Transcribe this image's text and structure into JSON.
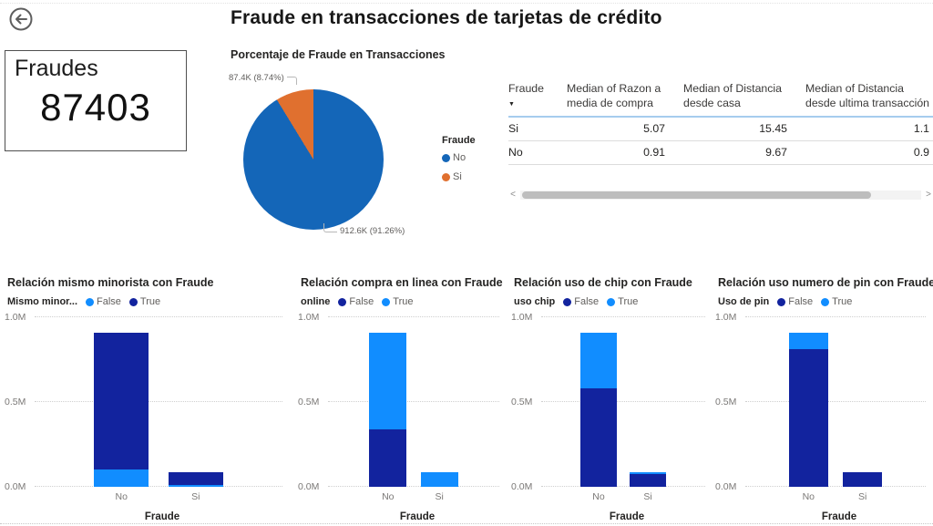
{
  "page": {
    "title": "Fraude en transacciones de tarjetas de crédito"
  },
  "kpi": {
    "label": "Fraudes",
    "value": "87403"
  },
  "table_ui": {
    "sort_indicator": "▼",
    "scroll_left": "<",
    "scroll_right": ">"
  },
  "chart_data": [
    {
      "type": "pie",
      "title": "Porcentaje de Fraude en Transacciones",
      "legend_title": "Fraude",
      "legend_position": "right",
      "labels": [
        "No",
        "Si"
      ],
      "values": [
        912600,
        87400
      ],
      "percents": [
        91.26,
        8.74
      ],
      "value_labels": [
        "912.6K (91.26%)",
        "87.4K (8.74%)"
      ],
      "colors": [
        "#1466B8",
        "#E0702F"
      ]
    },
    {
      "type": "table",
      "columns": [
        "Fraude",
        "Median of Razon a media de compra",
        "Median of Distancia desde casa",
        "Median of Distancia desde ultima transacción"
      ],
      "sort": {
        "column": "Fraude",
        "direction": "desc"
      },
      "rows": [
        [
          "Si",
          "5.07",
          "15.45",
          "1.1"
        ],
        [
          "No",
          "0.91",
          "9.67",
          "0.9"
        ]
      ]
    },
    {
      "type": "bar",
      "subtype": "stacked-column",
      "title": "Relación mismo minorista con Fraude",
      "legend_title": "Mismo minor...",
      "categories": [
        "No",
        "Si"
      ],
      "series": [
        {
          "name": "False",
          "color": "#118DFF",
          "values": [
            0.1,
            0.01
          ]
        },
        {
          "name": "True",
          "color": "#12239E",
          "values": [
            0.81,
            0.077
          ]
        }
      ],
      "xlabel": "Fraude",
      "ylabel": "",
      "ylim": [
        0,
        1.0
      ],
      "yticks": [
        "0.0M",
        "0.5M",
        "1.0M"
      ],
      "units": "millions",
      "grid": "dotted"
    },
    {
      "type": "bar",
      "subtype": "stacked-column",
      "title": "Relación compra en linea con Fraude",
      "legend_title": "online",
      "categories": [
        "No",
        "Si"
      ],
      "series": [
        {
          "name": "False",
          "color": "#12239E",
          "values": [
            0.34,
            0
          ]
        },
        {
          "name": "True",
          "color": "#118DFF",
          "values": [
            0.57,
            0.087
          ]
        }
      ],
      "xlabel": "Fraude",
      "ylabel": "",
      "ylim": [
        0,
        1.0
      ],
      "yticks": [
        "0.0M",
        "0.5M",
        "1.0M"
      ],
      "units": "millions",
      "grid": "dotted"
    },
    {
      "type": "bar",
      "subtype": "stacked-column",
      "title": "Relación uso de chip con Fraude",
      "legend_title": "uso chip",
      "categories": [
        "No",
        "Si"
      ],
      "series": [
        {
          "name": "False",
          "color": "#12239E",
          "values": [
            0.58,
            0.075
          ]
        },
        {
          "name": "True",
          "color": "#118DFF",
          "values": [
            0.33,
            0.012
          ]
        }
      ],
      "xlabel": "Fraude",
      "ylabel": "",
      "ylim": [
        0,
        1.0
      ],
      "yticks": [
        "0.0M",
        "0.5M",
        "1.0M"
      ],
      "units": "millions",
      "grid": "dotted"
    },
    {
      "type": "bar",
      "subtype": "stacked-column",
      "title": "Relación uso numero de pin con Fraude",
      "legend_title": "Uso de pin",
      "categories": [
        "No",
        "Si"
      ],
      "series": [
        {
          "name": "False",
          "color": "#12239E",
          "values": [
            0.81,
            0.087
          ]
        },
        {
          "name": "True",
          "color": "#118DFF",
          "values": [
            0.1,
            0
          ]
        }
      ],
      "xlabel": "Fraude",
      "ylabel": "",
      "ylim": [
        0,
        1.0
      ],
      "yticks": [
        "0.0M",
        "0.5M",
        "1.0M"
      ],
      "units": "millions",
      "grid": "dotted"
    }
  ]
}
